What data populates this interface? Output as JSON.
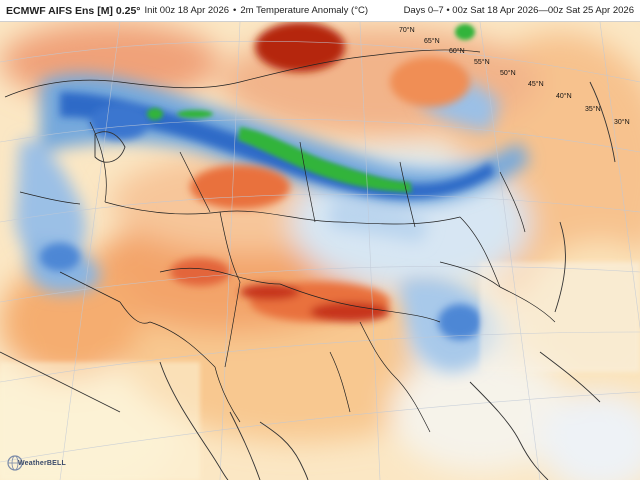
{
  "header": {
    "model": "ECMWF AIFS Ens [M] 0.25°",
    "init": "Init 00z 18 Apr 2026",
    "field": "2m Temperature Anomaly (°C)",
    "valid": "Days 0–7 • 00z Sat 18 Apr 2026—00z Sat 25 Apr 2026",
    "separator": "•"
  },
  "lat_labels": [
    "70°N",
    "65°N",
    "60°N",
    "55°N",
    "50°N",
    "45°N",
    "40°N",
    "35°N",
    "30°N"
  ],
  "logo": {
    "text": "WeatherBELL"
  },
  "colors": {
    "warm_dark": "#b5260e",
    "warm": "#e9713c",
    "warm_light": "#f6b27a",
    "pale_warm": "#fbe3b9",
    "neutral": "#f6f6f0",
    "cool_light": "#c7dcef",
    "cool": "#76a9dc",
    "cool_dark": "#2f6ac7",
    "cold_extreme": "#31b43a",
    "border": "#222222"
  }
}
